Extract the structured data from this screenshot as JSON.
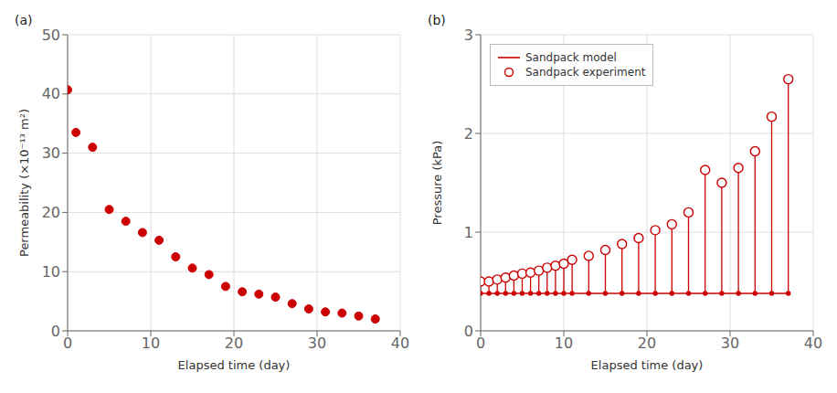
{
  "chart_data": [
    {
      "type": "scatter",
      "title": "(a)",
      "x_label": "Elapsed time (day)",
      "y_label": "Permeability (×10⁻¹³ m²)",
      "xlim": [
        0,
        40
      ],
      "ylim": [
        0,
        50
      ],
      "xticks": [
        0,
        10,
        20,
        30,
        40
      ],
      "yticks": [
        0,
        10,
        20,
        30,
        40,
        50
      ],
      "grid": true,
      "color": "#cc0000",
      "marker": "circle",
      "x": [
        0,
        1,
        3,
        5,
        7,
        9,
        11,
        13,
        15,
        17,
        19,
        21,
        23,
        25,
        27,
        29,
        31,
        33,
        35,
        37
      ],
      "values": [
        40.7,
        33.5,
        31.0,
        20.5,
        18.5,
        16.6,
        15.3,
        12.5,
        10.6,
        9.5,
        7.5,
        6.6,
        6.2,
        5.7,
        4.6,
        3.7,
        3.2,
        3.0,
        2.5,
        2.0
      ]
    },
    {
      "type": "line",
      "title": "(b)",
      "x_label": "Elapsed time (day)",
      "y_label": "Pressure (kPa)",
      "xlim": [
        0,
        40
      ],
      "ylim": [
        0,
        3
      ],
      "xticks": [
        0,
        10,
        20,
        30,
        40
      ],
      "yticks": [
        0,
        1,
        2,
        3
      ],
      "grid": true,
      "legend": "upper left",
      "x": [
        0,
        1,
        2,
        3,
        4,
        5,
        6,
        7,
        8,
        9,
        10,
        11,
        13,
        15,
        17,
        19,
        21,
        23,
        25,
        27,
        29,
        31,
        33,
        35,
        37
      ],
      "series": [
        {
          "name": "Sandpack model",
          "color": "#cc0000",
          "type": "line",
          "marker": "dot",
          "values": [
            0.38,
            0.38,
            0.38,
            0.38,
            0.38,
            0.38,
            0.38,
            0.38,
            0.38,
            0.38,
            0.38,
            0.38,
            0.38,
            0.38,
            0.38,
            0.38,
            0.38,
            0.38,
            0.38,
            0.38,
            0.38,
            0.38,
            0.38,
            0.38,
            0.38
          ]
        },
        {
          "name": "Sandpack experiment",
          "color": "#cc0000",
          "type": "stem",
          "marker": "open_circle",
          "values": [
            0.5,
            0.5,
            0.52,
            0.54,
            0.56,
            0.58,
            0.59,
            0.61,
            0.64,
            0.66,
            0.68,
            0.72,
            0.76,
            0.82,
            0.88,
            0.94,
            1.02,
            1.08,
            1.2,
            1.63,
            1.5,
            1.65,
            1.82,
            2.17,
            2.55
          ]
        }
      ]
    }
  ]
}
